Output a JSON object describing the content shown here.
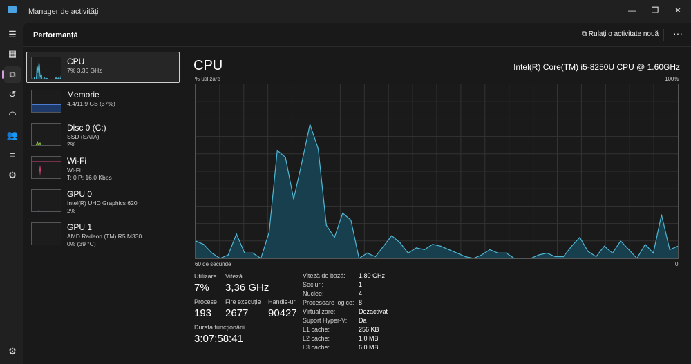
{
  "app": {
    "title": "Manager de activități"
  },
  "window": {
    "minimize": "—",
    "maximize": "❐",
    "close": "✕"
  },
  "nav": [
    "hamburger-icon",
    "processes-icon",
    "performance-icon",
    "history-icon",
    "startup-icon",
    "users-icon",
    "details-icon",
    "services-icon",
    "settings-icon"
  ],
  "header": {
    "title": "Performanță",
    "run_task": "Rulați o activitate nouă",
    "more": "···"
  },
  "devices": [
    {
      "name": "CPU",
      "line1": "7%  3,36 GHz",
      "line2": "",
      "color": "#4fb7d4"
    },
    {
      "name": "Memorie",
      "line1": "4,4/11,9 GB (37%)",
      "line2": "",
      "color": "#4a7bd0"
    },
    {
      "name": "Disc 0 (C:)",
      "line1": "SSD (SATA)",
      "line2": "2%",
      "color": "#8fcf3a"
    },
    {
      "name": "Wi-Fi",
      "line1": "Wi-Fi",
      "line2": "T: 0 P: 16,0 Kbps",
      "color": "#d0457a"
    },
    {
      "name": "GPU 0",
      "line1": "Intel(R) UHD Graphics 620",
      "line2": "2%",
      "color": "#a65bd0"
    },
    {
      "name": "GPU 1",
      "line1": "AMD Radeon (TM) R5 M330",
      "line2": "0%  (39 °C)",
      "color": "#888"
    }
  ],
  "cpu": {
    "title": "CPU",
    "model": "Intel(R) Core(TM) i5-8250U CPU @ 1.60GHz"
  },
  "chart_data": {
    "type": "area",
    "ylabel": "% utilizare",
    "ymax_label": "100%",
    "xlabel_left": "60 de secunde",
    "xlabel_right": "0",
    "ylim": [
      0,
      100
    ],
    "color": "#4fb7d4",
    "values": [
      10,
      8,
      3,
      0,
      2,
      14,
      3,
      3,
      0,
      15,
      62,
      58,
      34,
      55,
      77,
      63,
      19,
      12,
      26,
      22,
      0,
      3,
      1,
      7,
      13,
      9,
      3,
      6,
      5,
      8,
      7,
      5,
      3,
      1,
      0,
      2,
      5,
      3,
      3,
      0,
      0,
      0,
      2,
      3,
      1,
      1,
      7,
      12,
      4,
      1,
      7,
      3,
      10,
      5,
      0,
      8,
      3,
      25,
      5,
      7
    ]
  },
  "stats": {
    "util_label": "Utilizare",
    "util": "7%",
    "speed_label": "Viteză",
    "speed": "3,36 GHz",
    "proc_label": "Procese",
    "proc": "193",
    "threads_label": "Fire execuție",
    "threads": "2677",
    "handles_label": "Handle-uri",
    "handles": "90427",
    "uptime_label": "Durata funcționării",
    "uptime": "3:07:58:41"
  },
  "specs": [
    {
      "k": "Viteză de bază:",
      "v": "1,80 GHz"
    },
    {
      "k": "Socluri:",
      "v": "1"
    },
    {
      "k": "Nuclee:",
      "v": "4"
    },
    {
      "k": "Procesoare logice:",
      "v": "8"
    },
    {
      "k": "Virtualizare:",
      "v": "Dezactivat"
    },
    {
      "k": "Suport Hyper-V:",
      "v": "Da"
    },
    {
      "k": "L1 cache:",
      "v": "256 KB"
    },
    {
      "k": "L2 cache:",
      "v": "1,0 MB"
    },
    {
      "k": "L3 cache:",
      "v": "6,0 MB"
    }
  ]
}
